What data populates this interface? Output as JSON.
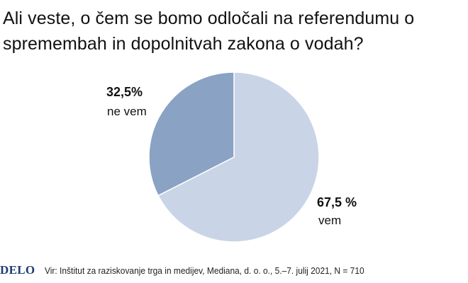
{
  "title": "Ali veste, o čem se bomo odločali na referendumu o spremembah in dopolnitvah zakona o vodah?",
  "footer": {
    "brand": "DELO",
    "source": "Vir: Inštitut za raziskovanje trga in medijev, Mediana, d. o. o., 5.–7. julij 2021, N = 710"
  },
  "chart_data": {
    "type": "pie",
    "title": "Ali veste, o čem se bomo odločali na referendumu o spremembah in dopolnitvah zakona o vodah?",
    "slices": [
      {
        "label": "vem",
        "value": 67.5,
        "value_text": "67,5 %",
        "color": "#c9d5e6"
      },
      {
        "label": "ne vem",
        "value": 32.5,
        "value_text": "32,5%",
        "color": "#8aa2c4"
      }
    ],
    "start": "12 o'clock",
    "direction": "clockwise"
  }
}
